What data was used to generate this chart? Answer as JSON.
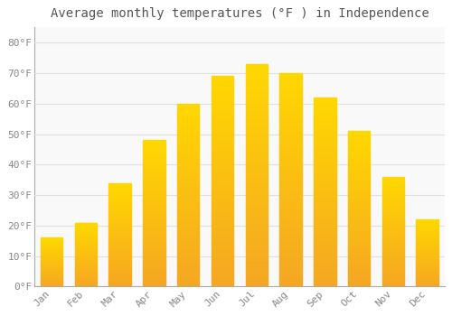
{
  "title": "Average monthly temperatures (°F ) in Independence",
  "months": [
    "Jan",
    "Feb",
    "Mar",
    "Apr",
    "May",
    "Jun",
    "Jul",
    "Aug",
    "Sep",
    "Oct",
    "Nov",
    "Dec"
  ],
  "values": [
    16,
    21,
    34,
    48,
    60,
    69,
    73,
    70,
    62,
    51,
    36,
    22
  ],
  "bar_color_bottom": "#F5A623",
  "bar_color_top": "#FFD700",
  "ylim": [
    0,
    85
  ],
  "yticks": [
    0,
    10,
    20,
    30,
    40,
    50,
    60,
    70,
    80
  ],
  "ytick_labels": [
    "0°F",
    "10°F",
    "20°F",
    "30°F",
    "40°F",
    "50°F",
    "60°F",
    "70°F",
    "80°F"
  ],
  "background_color": "#ffffff",
  "plot_bg_color": "#f9f9f9",
  "grid_color": "#e0e0e0",
  "title_fontsize": 10,
  "tick_fontsize": 8,
  "bar_width": 0.65,
  "title_color": "#555555",
  "tick_color": "#888888",
  "spine_color": "#aaaaaa"
}
